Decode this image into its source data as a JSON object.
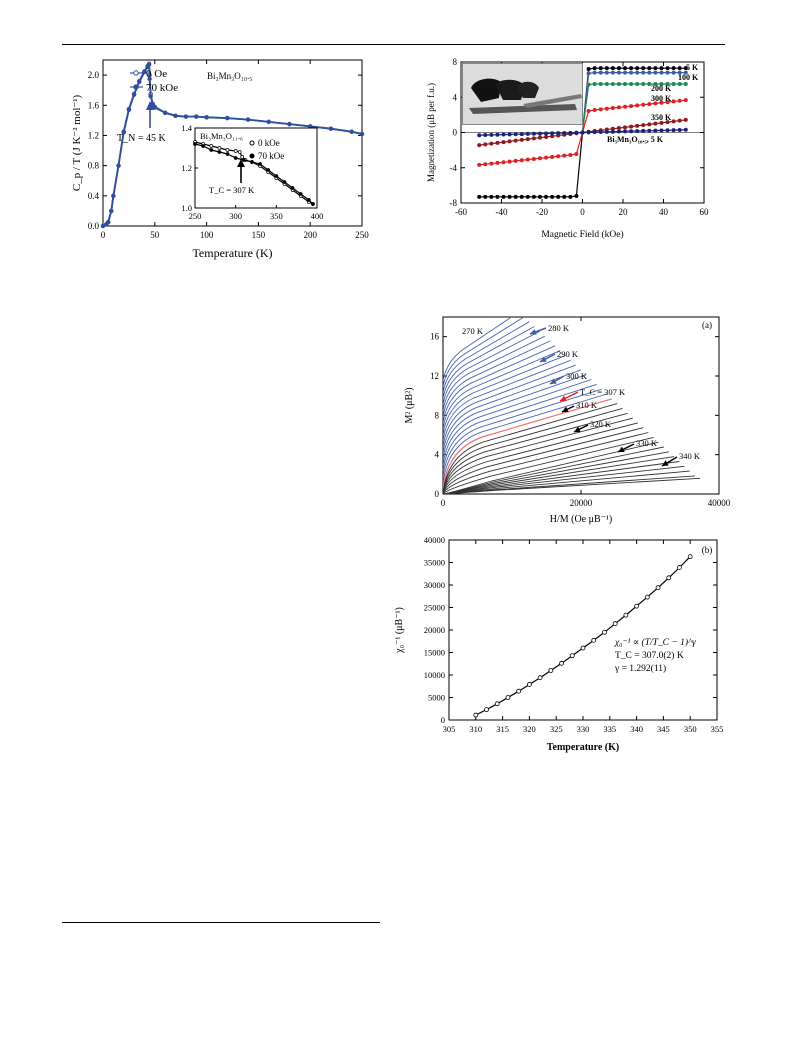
{
  "chart_data": [
    {
      "id": "heat-capacity",
      "type": "line",
      "xlabel": "Temperature (K)",
      "ylabel": "C_p / T (J K⁻² mol⁻¹)",
      "xlim": [
        0,
        250
      ],
      "ylim": [
        0,
        2.2
      ],
      "xticks": [
        0,
        50,
        100,
        150,
        200,
        250
      ],
      "yticks": [
        0.0,
        0.4,
        0.8,
        1.2,
        1.6,
        2.0
      ],
      "compound_label": "Bi₃Mn₃O₁₀.₅",
      "annotation": "T_N = 45 K",
      "series": [
        {
          "name": "0 Oe",
          "color": "#2f4f9e",
          "marker": "open-circle",
          "x": [
            0,
            3,
            5,
            8,
            10,
            15,
            20,
            25,
            30,
            35,
            40,
            43,
            44.5,
            45,
            46,
            48,
            50,
            60,
            70,
            80,
            90,
            100,
            120,
            140,
            160,
            180,
            200,
            220,
            240,
            250
          ],
          "y": [
            0,
            0.02,
            0.05,
            0.2,
            0.4,
            0.8,
            1.25,
            1.55,
            1.75,
            1.92,
            2.05,
            2.12,
            2.15,
            2.0,
            1.75,
            1.62,
            1.58,
            1.5,
            1.46,
            1.45,
            1.45,
            1.44,
            1.43,
            1.41,
            1.38,
            1.35,
            1.32,
            1.29,
            1.25,
            1.22
          ]
        },
        {
          "name": "70 kOe",
          "color": "#2f4f9e",
          "marker": "filled-circle",
          "x": [
            0,
            3,
            5,
            8,
            10,
            15,
            20,
            25,
            30,
            35,
            40,
            43,
            44.5,
            45,
            46,
            48,
            50,
            60,
            70,
            80,
            90,
            100,
            120,
            140,
            160,
            180,
            200,
            220,
            240,
            250
          ],
          "y": [
            0,
            0.02,
            0.05,
            0.2,
            0.4,
            0.8,
            1.24,
            1.54,
            1.74,
            1.91,
            2.04,
            2.11,
            2.14,
            1.95,
            1.72,
            1.61,
            1.57,
            1.5,
            1.46,
            1.45,
            1.45,
            1.44,
            1.43,
            1.41,
            1.38,
            1.35,
            1.32,
            1.29,
            1.25,
            1.22
          ]
        }
      ],
      "inset": {
        "xlim": [
          250,
          400
        ],
        "ylim": [
          1.0,
          1.4
        ],
        "xticks": [
          250,
          300,
          350,
          400
        ],
        "yticks": [
          1.0,
          1.2,
          1.4
        ],
        "compound_label": "Bi₃Mn₃O₁₁.₆",
        "annotation": "T_C = 307 K",
        "series": [
          {
            "name": "0 kOe",
            "marker": "open-circle",
            "x": [
              250,
              260,
              270,
              280,
              290,
              300,
              305,
              308,
              312,
              320,
              330,
              340,
              350,
              360,
              370,
              380,
              390,
              395
            ],
            "y": [
              1.33,
              1.32,
              1.31,
              1.3,
              1.29,
              1.285,
              1.28,
              1.255,
              1.24,
              1.23,
              1.21,
              1.18,
              1.15,
              1.12,
              1.09,
              1.06,
              1.03,
              1.02
            ]
          },
          {
            "name": "70 kOe",
            "marker": "filled-circle",
            "x": [
              250,
              260,
              270,
              280,
              290,
              300,
              310,
              320,
              330,
              340,
              350,
              360,
              370,
              380,
              390,
              395
            ],
            "y": [
              1.32,
              1.31,
              1.29,
              1.28,
              1.27,
              1.25,
              1.24,
              1.23,
              1.22,
              1.19,
              1.16,
              1.13,
              1.1,
              1.07,
              1.04,
              1.02
            ]
          }
        ]
      }
    },
    {
      "id": "magnetization",
      "type": "line",
      "xlabel": "Magnetic Field (kOe)",
      "ylabel": "Magnetization (μB per f.u.)",
      "xlim": [
        -60,
        60
      ],
      "ylim": [
        -8,
        8
      ],
      "xticks": [
        -60,
        -40,
        -20,
        0,
        20,
        40,
        60
      ],
      "yticks": [
        -8,
        -4,
        0,
        4,
        8
      ],
      "series": [
        {
          "name": "5 K",
          "color": "#000000",
          "ms": 7.3,
          "slope": 0.0,
          "side": "both"
        },
        {
          "name": "100 K",
          "color": "#3f5ba9",
          "ms": 6.8,
          "slope": 0.0,
          "side": "pos"
        },
        {
          "name": "200 K",
          "color": "#1f8a4d",
          "ms": 5.5,
          "slope": 0.0,
          "side": "pos"
        },
        {
          "name": "300 K",
          "color": "#e02020",
          "ms": 2.4,
          "slope": 0.025,
          "side": "both"
        },
        {
          "name": "350 K",
          "color": "#8b1a1a",
          "ms": 0.0,
          "slope": 0.028,
          "side": "both"
        },
        {
          "name": "Bi₃Mn₃O₁₀.₅, 5 K",
          "color": "#1a237e",
          "ms": 0.0,
          "slope": 0.006,
          "side": "both"
        }
      ]
    },
    {
      "id": "arrott-plot",
      "type": "line",
      "panel_label": "(a)",
      "xlabel": "H/M (Oe μB⁻¹)",
      "ylabel": "M² (μB²)",
      "xlim": [
        0,
        40000
      ],
      "ylim": [
        0,
        18
      ],
      "xticks": [
        0,
        20000,
        40000
      ],
      "xtick_labels": [
        "0",
        "20000",
        "40000"
      ],
      "yticks": [
        0,
        4,
        8,
        12,
        16
      ],
      "isotherm_count": 36,
      "tc_index": 18,
      "labels": [
        {
          "text": "270 K",
          "color": "#3f5ba9"
        },
        {
          "text": "280 K",
          "color": "#3f5ba9"
        },
        {
          "text": "290 K",
          "color": "#3f5ba9"
        },
        {
          "text": "300 K",
          "color": "#3f5ba9"
        },
        {
          "text": "T_C = 307 K",
          "color": "#e02020"
        },
        {
          "text": "310 K",
          "color": "#000000"
        },
        {
          "text": "320 K",
          "color": "#000000"
        },
        {
          "text": "330 K",
          "color": "#000000"
        },
        {
          "text": "340 K",
          "color": "#000000"
        }
      ],
      "colors": {
        "below_tc": "#4a63b0",
        "tc": "#f07070",
        "above_tc": "#333333"
      }
    },
    {
      "id": "inverse-susceptibility",
      "type": "scatter",
      "panel_label": "(b)",
      "xlabel": "Temperature (K)",
      "ylabel": "χ₀⁻¹ (μB⁻¹)",
      "xlim": [
        305,
        355
      ],
      "ylim": [
        0,
        40000
      ],
      "xticks": [
        305,
        310,
        315,
        320,
        325,
        330,
        335,
        340,
        345,
        350,
        355
      ],
      "yticks": [
        0,
        5000,
        10000,
        15000,
        20000,
        25000,
        30000,
        35000,
        40000
      ],
      "fit_text": [
        "χ₀⁻¹ ∝ (T/T_C − 1)^γ",
        "T_C = 307.0(2) K",
        "γ = 1.292(11)"
      ],
      "points": {
        "x": [
          310,
          312,
          314,
          316,
          318,
          320,
          322,
          324,
          326,
          328,
          330,
          332,
          334,
          336,
          338,
          340,
          342,
          344,
          346,
          348,
          350
        ],
        "y": [
          1100,
          2300,
          3600,
          5000,
          6400,
          7900,
          9400,
          11000,
          12600,
          14300,
          16000,
          17700,
          19500,
          21400,
          23300,
          25300,
          27300,
          29400,
          31600,
          33900,
          36300
        ]
      }
    }
  ]
}
